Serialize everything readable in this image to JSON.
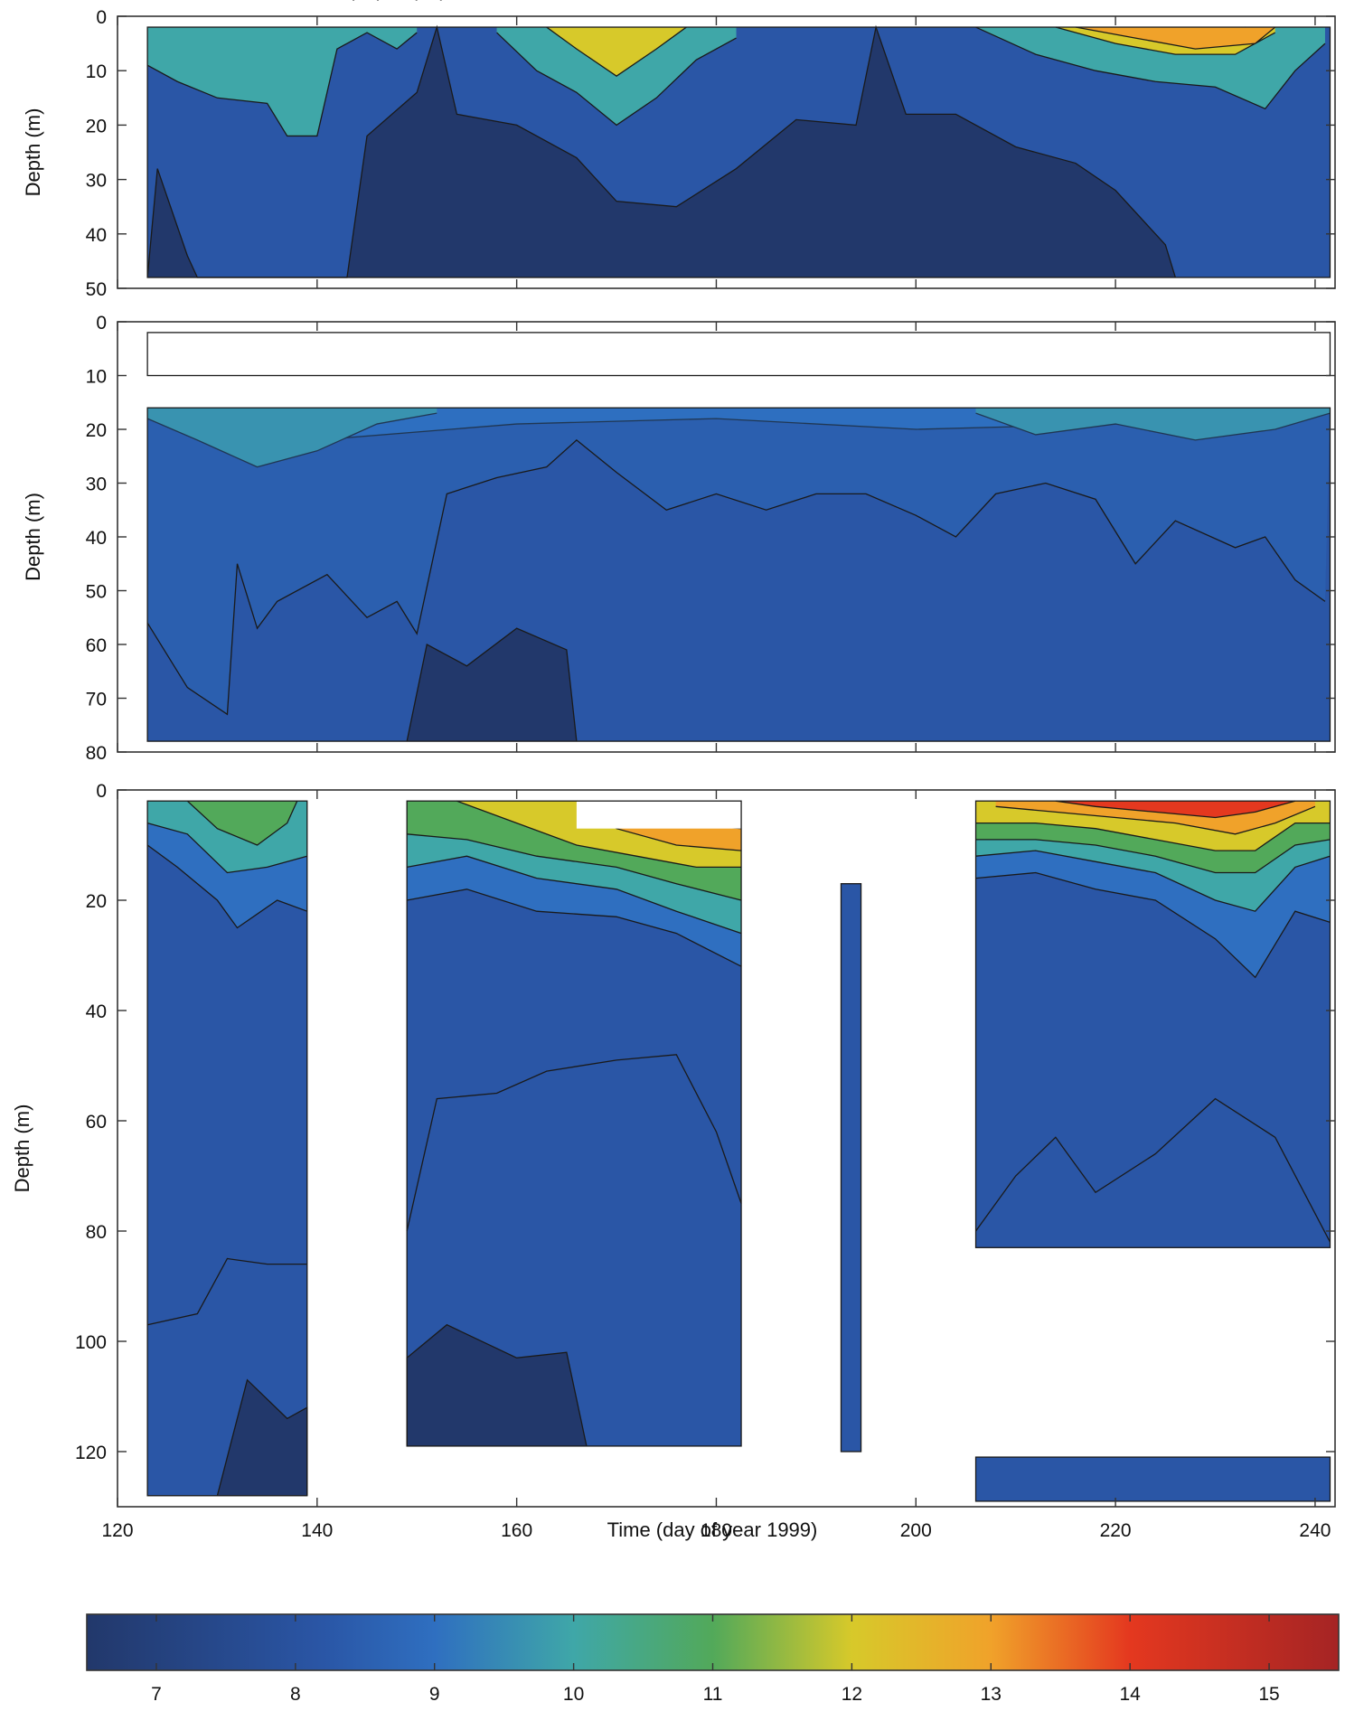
{
  "figure": {
    "header_fragment": "(... ) ... (... )",
    "xlabel": "Time (day of year 1999)",
    "colorbar_label": ""
  },
  "colors": {
    "c7": "#22386b",
    "c8": "#2a56a6",
    "c9": "#2f6fc0",
    "c10": "#3fa7a8",
    "c11": "#52a95a",
    "c12": "#d7c92a",
    "c13": "#f0a22a",
    "c14": "#e4381f",
    "c15": "#a52424"
  },
  "chart_data": [
    {
      "type": "heatmap",
      "panel": "top",
      "title": "",
      "xlabel": "",
      "ylabel": "Depth (m)",
      "xlim": [
        120,
        242
      ],
      "ylim": [
        0,
        50
      ],
      "y_inverted": true,
      "yticks": [
        0,
        10,
        20,
        30,
        40,
        50
      ],
      "data_extent": {
        "x": [
          123,
          241.5
        ],
        "y": [
          2,
          48
        ]
      },
      "filled_bands": [
        {
          "level": 9,
          "profile": [
            [
              123,
              9
            ],
            [
              126,
              12
            ],
            [
              130,
              15
            ],
            [
              135,
              16
            ],
            [
              137,
              22
            ],
            [
              140,
              22
            ],
            [
              142,
              6
            ],
            [
              145,
              3
            ],
            [
              148,
              6
            ],
            [
              150,
              3
            ]
          ]
        },
        {
          "level": 10,
          "profile": [
            [
              158,
              3
            ],
            [
              162,
              10
            ],
            [
              166,
              14
            ],
            [
              170,
              20
            ],
            [
              174,
              15
            ],
            [
              178,
              8
            ],
            [
              182,
              4
            ]
          ]
        },
        {
          "level": 11,
          "profile": [
            [
              163,
              2
            ],
            [
              166,
              6
            ],
            [
              170,
              11
            ],
            [
              174,
              6
            ],
            [
              177,
              2
            ]
          ]
        },
        {
          "level": 10,
          "profile": [
            [
              206,
              2
            ],
            [
              212,
              7
            ],
            [
              218,
              10
            ],
            [
              224,
              12
            ],
            [
              230,
              13
            ],
            [
              235,
              17
            ],
            [
              238,
              10
            ],
            [
              241,
              5
            ]
          ]
        },
        {
          "level": 12,
          "profile": [
            [
              214,
              2
            ],
            [
              220,
              5
            ],
            [
              226,
              7
            ],
            [
              232,
              7
            ],
            [
              236,
              3
            ]
          ]
        },
        {
          "level": 14,
          "profile": [
            [
              224,
              2
            ],
            [
              227,
              5
            ],
            [
              230,
              3
            ],
            [
              233,
              2
            ]
          ]
        }
      ],
      "cold_core_7": [
        [
          123,
          48
        ],
        [
          124,
          28
        ],
        [
          127,
          44
        ],
        [
          128,
          48
        ],
        [
          143,
          48
        ],
        [
          145,
          22
        ],
        [
          150,
          14
        ],
        [
          152,
          2
        ],
        [
          154,
          18
        ],
        [
          160,
          20
        ],
        [
          166,
          26
        ],
        [
          170,
          34
        ],
        [
          176,
          35
        ],
        [
          182,
          28
        ],
        [
          188,
          19
        ],
        [
          194,
          20
        ],
        [
          196,
          2
        ],
        [
          199,
          18
        ],
        [
          204,
          18
        ],
        [
          210,
          24
        ],
        [
          216,
          27
        ],
        [
          220,
          32
        ],
        [
          225,
          42
        ],
        [
          226,
          48
        ]
      ]
    },
    {
      "type": "heatmap",
      "panel": "middle",
      "title": "",
      "xlabel": "",
      "ylabel": "Depth (m)",
      "xlim": [
        120,
        242
      ],
      "ylim": [
        0,
        80
      ],
      "y_inverted": true,
      "yticks": [
        0,
        10,
        20,
        30,
        40,
        50,
        60,
        70,
        80
      ],
      "data_extent": {
        "x": [
          123,
          241.5
        ],
        "y": [
          [
            2,
            10
          ],
          [
            16,
            78
          ]
        ]
      },
      "surface_layer_range": [
        9,
        15
      ],
      "contour_levels": [
        8,
        9,
        10
      ],
      "isotherm_8": [
        [
          123,
          56
        ],
        [
          127,
          68
        ],
        [
          131,
          73
        ],
        [
          132,
          45
        ],
        [
          134,
          57
        ],
        [
          136,
          52
        ],
        [
          141,
          47
        ],
        [
          145,
          55
        ],
        [
          148,
          52
        ],
        [
          150,
          58
        ],
        [
          153,
          32
        ],
        [
          158,
          29
        ],
        [
          163,
          27
        ],
        [
          166,
          22
        ],
        [
          170,
          28
        ],
        [
          175,
          35
        ],
        [
          180,
          32
        ],
        [
          185,
          35
        ],
        [
          190,
          32
        ],
        [
          195,
          32
        ],
        [
          200,
          36
        ],
        [
          204,
          40
        ],
        [
          208,
          32
        ],
        [
          213,
          30
        ],
        [
          218,
          33
        ],
        [
          222,
          45
        ],
        [
          226,
          37
        ],
        [
          232,
          42
        ],
        [
          235,
          40
        ],
        [
          238,
          48
        ],
        [
          241,
          52
        ]
      ],
      "cold_core_7": [
        [
          149,
          78
        ],
        [
          151,
          60
        ],
        [
          155,
          64
        ],
        [
          160,
          57
        ],
        [
          165,
          61
        ],
        [
          166,
          78
        ]
      ]
    },
    {
      "type": "heatmap",
      "panel": "bottom",
      "title": "",
      "xlabel": "Time (day of year 1999)",
      "ylabel": "Depth (m)",
      "xlim": [
        120,
        242
      ],
      "ylim": [
        0,
        130
      ],
      "y_inverted": true,
      "xticks": [
        120,
        140,
        160,
        180,
        200,
        220,
        240
      ],
      "yticks": [
        0,
        20,
        40,
        60,
        80,
        100,
        120
      ],
      "data_blocks": [
        {
          "x": [
            123,
            139
          ],
          "y": [
            2,
            128
          ]
        },
        {
          "x": [
            149,
            182.5
          ],
          "y": [
            2,
            119
          ]
        },
        {
          "x": [
            192.5,
            194.5
          ],
          "y": [
            17,
            120
          ]
        },
        {
          "x": [
            206,
            241.5
          ],
          "y": [
            2,
            83
          ]
        },
        {
          "x": [
            206,
            241.5
          ],
          "y": [
            121,
            129
          ]
        }
      ],
      "isotherm_8_block1": [
        [
          123,
          97
        ],
        [
          128,
          95
        ],
        [
          131,
          85
        ],
        [
          135,
          86
        ],
        [
          139,
          86
        ]
      ],
      "isotherm_8_block2": [
        [
          149,
          80
        ],
        [
          152,
          56
        ],
        [
          158,
          55
        ],
        [
          163,
          51
        ],
        [
          170,
          49
        ],
        [
          176,
          48
        ],
        [
          180,
          62
        ],
        [
          182.5,
          75
        ]
      ],
      "isotherm_8_block4": [
        [
          206,
          80
        ],
        [
          210,
          70
        ],
        [
          214,
          63
        ],
        [
          218,
          73
        ],
        [
          224,
          66
        ],
        [
          230,
          56
        ],
        [
          236,
          63
        ],
        [
          241.5,
          82
        ]
      ],
      "cold_core_block1": [
        [
          130,
          128
        ],
        [
          133,
          107
        ],
        [
          137,
          114
        ],
        [
          139,
          112
        ],
        [
          139,
          128
        ]
      ],
      "cold_core_block2": [
        [
          149,
          119
        ],
        [
          149,
          103
        ],
        [
          153,
          97
        ],
        [
          160,
          103
        ],
        [
          165,
          102
        ],
        [
          167,
          119
        ]
      ]
    },
    {
      "type": "colorbar",
      "ticks": [
        7,
        8,
        9,
        10,
        11,
        12,
        13,
        14,
        15
      ],
      "range": [
        6.5,
        15.5
      ]
    }
  ]
}
